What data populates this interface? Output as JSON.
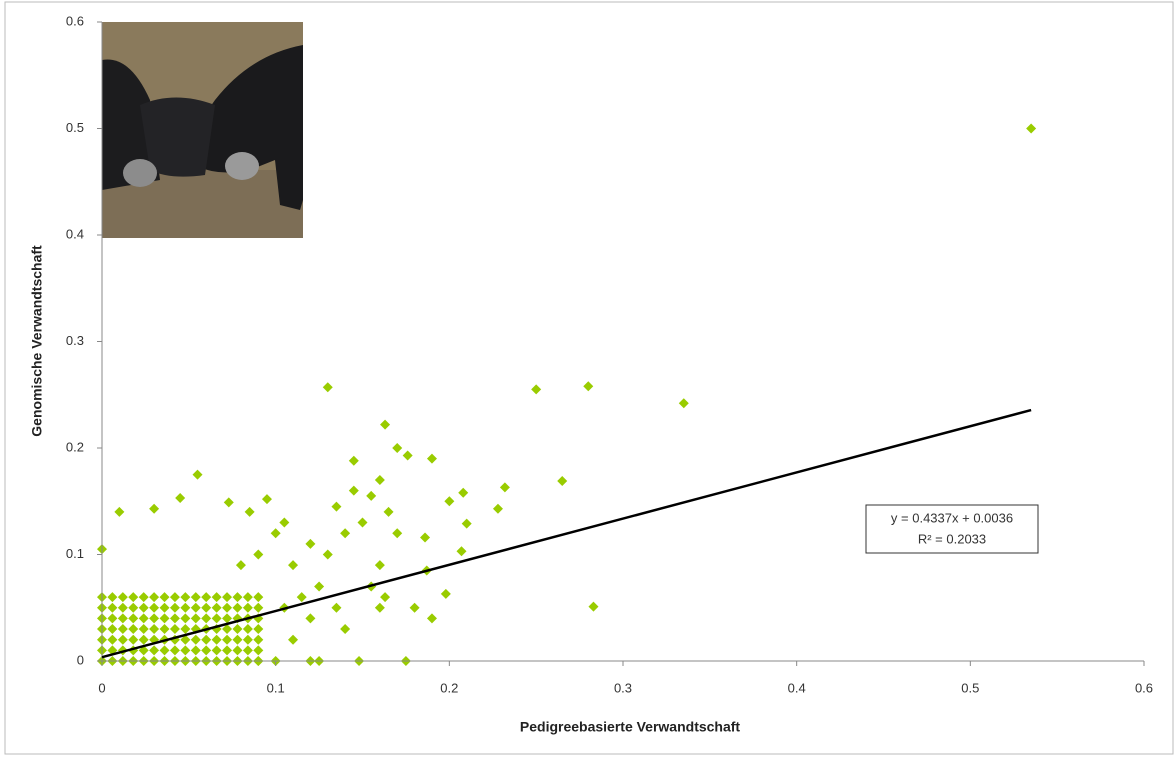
{
  "chart_data": {
    "type": "scatter",
    "x_label": "Pedigreebasierte Verwandtschaft",
    "y_label": "Genomische Verwandtschaft",
    "xlim": [
      0,
      0.6
    ],
    "ylim": [
      0,
      0.6
    ],
    "xticks": [
      0,
      0.1,
      0.2,
      0.3,
      0.4,
      0.5,
      0.6
    ],
    "yticks": [
      0,
      0.1,
      0.2,
      0.3,
      0.4,
      0.5,
      0.6
    ],
    "grid": false,
    "series": [
      {
        "color": "#99cc00",
        "x": [
          0,
          0,
          0,
          0,
          0,
          0,
          0,
          0.006,
          0.006,
          0.006,
          0.006,
          0.006,
          0.006,
          0.006,
          0.012,
          0.012,
          0.012,
          0.012,
          0.012,
          0.012,
          0.012,
          0.018,
          0.018,
          0.018,
          0.018,
          0.018,
          0.018,
          0.018,
          0.024,
          0.024,
          0.024,
          0.024,
          0.024,
          0.024,
          0.024,
          0.03,
          0.03,
          0.03,
          0.03,
          0.03,
          0.03,
          0.03,
          0.036,
          0.036,
          0.036,
          0.036,
          0.036,
          0.036,
          0.036,
          0.042,
          0.042,
          0.042,
          0.042,
          0.042,
          0.042,
          0.042,
          0.048,
          0.048,
          0.048,
          0.048,
          0.048,
          0.048,
          0.048,
          0.054,
          0.054,
          0.054,
          0.054,
          0.054,
          0.054,
          0.054,
          0.06,
          0.06,
          0.06,
          0.06,
          0.06,
          0.06,
          0.06,
          0.066,
          0.066,
          0.066,
          0.066,
          0.066,
          0.066,
          0.066,
          0.072,
          0.072,
          0.072,
          0.072,
          0.072,
          0.072,
          0.072,
          0.078,
          0.078,
          0.078,
          0.078,
          0.078,
          0.078,
          0.078,
          0.084,
          0.084,
          0.084,
          0.084,
          0.084,
          0.084,
          0.084,
          0.09,
          0.09,
          0.09,
          0.09,
          0.09,
          0.09,
          0.09,
          0.535,
          0.13,
          0.25,
          0.28,
          0.335,
          0.163,
          0.17,
          0.176,
          0.19,
          0.145,
          0.265,
          0.232,
          0.208,
          0.2,
          0.228,
          0.21,
          0.207,
          0.198,
          0.283,
          0.18,
          0.19,
          0.175,
          0.148,
          0.055,
          0.045,
          0.073,
          0.095,
          0.085,
          0.03,
          0.01,
          0,
          0.186,
          0.187,
          0.145,
          0.155,
          0.16,
          0.135,
          0.14,
          0.15,
          0.165,
          0.17,
          0.16,
          0.155,
          0.163,
          0.16,
          0.14,
          0.135,
          0.13,
          0.12,
          0.11,
          0.1,
          0.105,
          0.09,
          0.08,
          0.125,
          0.12,
          0.11,
          0.1,
          0.09,
          0.12,
          0.125,
          0.115,
          0.105
        ],
        "values": [
          0,
          0.01,
          0.02,
          0.03,
          0.04,
          0.05,
          0.06,
          0,
          0.01,
          0.02,
          0.03,
          0.04,
          0.05,
          0.06,
          0,
          0.01,
          0.02,
          0.03,
          0.04,
          0.05,
          0.06,
          0,
          0.01,
          0.02,
          0.03,
          0.04,
          0.05,
          0.06,
          0,
          0.01,
          0.02,
          0.03,
          0.04,
          0.05,
          0.06,
          0,
          0.01,
          0.02,
          0.03,
          0.04,
          0.05,
          0.06,
          0,
          0.01,
          0.02,
          0.03,
          0.04,
          0.05,
          0.06,
          0,
          0.01,
          0.02,
          0.03,
          0.04,
          0.05,
          0.06,
          0,
          0.01,
          0.02,
          0.03,
          0.04,
          0.05,
          0.06,
          0,
          0.01,
          0.02,
          0.03,
          0.04,
          0.05,
          0.06,
          0,
          0.01,
          0.02,
          0.03,
          0.04,
          0.05,
          0.06,
          0,
          0.01,
          0.02,
          0.03,
          0.04,
          0.05,
          0.06,
          0,
          0.01,
          0.02,
          0.03,
          0.04,
          0.05,
          0.06,
          0,
          0.01,
          0.02,
          0.03,
          0.04,
          0.05,
          0.06,
          0,
          0.01,
          0.02,
          0.03,
          0.04,
          0.05,
          0.06,
          0,
          0.01,
          0.02,
          0.03,
          0.04,
          0.05,
          0.06,
          0.5,
          0.257,
          0.255,
          0.258,
          0.242,
          0.222,
          0.2,
          0.193,
          0.19,
          0.188,
          0.169,
          0.163,
          0.158,
          0.15,
          0.143,
          0.129,
          0.103,
          0.063,
          0.051,
          0.05,
          0.04,
          0,
          0,
          0.175,
          0.153,
          0.149,
          0.152,
          0.14,
          0.143,
          0.14,
          0.105,
          0.116,
          0.085,
          0.16,
          0.155,
          0.17,
          0.145,
          0.12,
          0.13,
          0.14,
          0.12,
          0.09,
          0.07,
          0.06,
          0.05,
          0.03,
          0.05,
          0.1,
          0.11,
          0.09,
          0.12,
          0.13,
          0.1,
          0.09,
          0.07,
          0.04,
          0.02,
          0,
          0,
          0,
          0,
          0.06,
          0.05
        ]
      }
    ],
    "trendline": {
      "color": "#000000",
      "slope": 0.4337,
      "intercept": 0.0036,
      "x": [
        0,
        0.535
      ],
      "equation": "y = 0.4337x + 0.0036",
      "r2": "R² = 0.2033"
    }
  }
}
